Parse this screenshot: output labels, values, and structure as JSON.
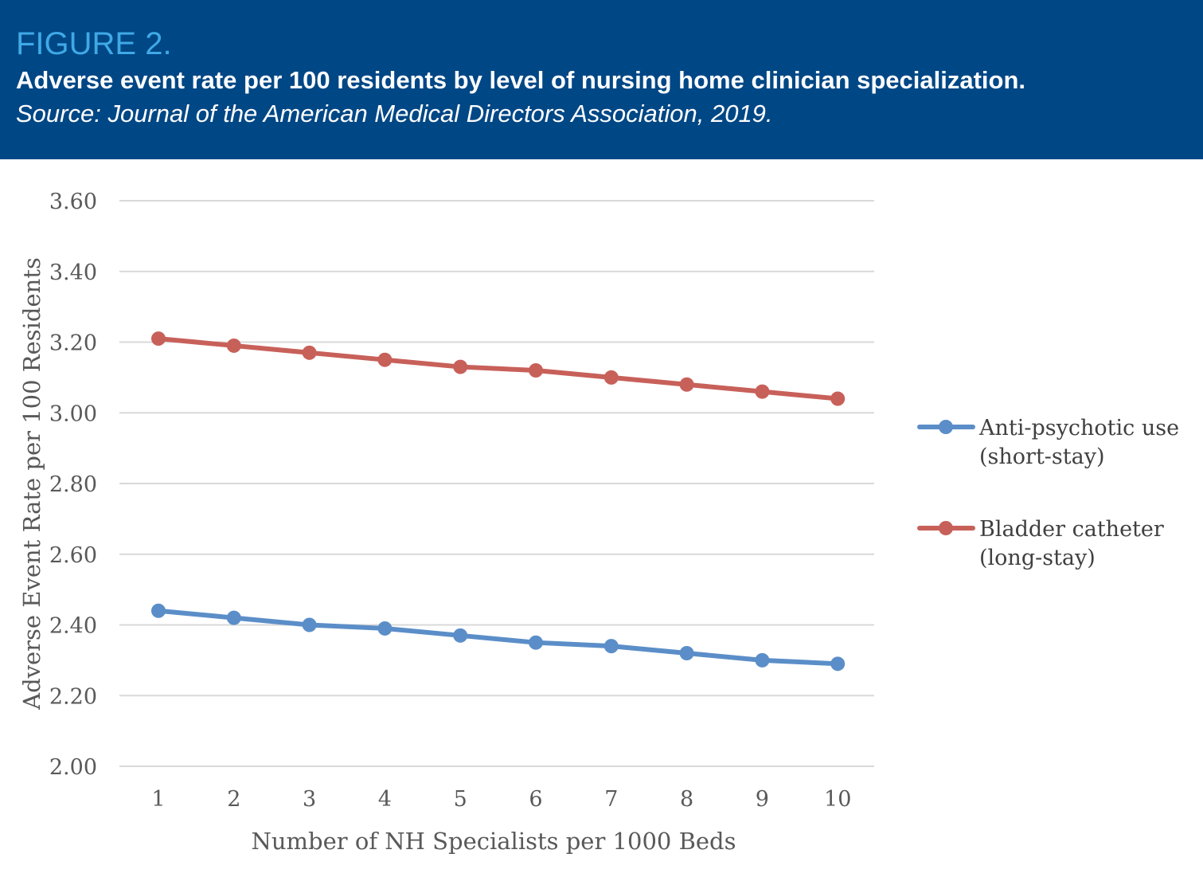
{
  "header": {
    "label": "FIGURE 2.",
    "title": "Adverse event rate per 100 residents by level of nursing home clinician specialization.",
    "source": "Source: Journal of the American Medical Directors Association, 2019."
  },
  "chart_data": {
    "type": "line",
    "xlabel": "Number of NH Specialists per 1000 Beds",
    "ylabel": "Adverse Event Rate per 100 Residents",
    "x": [
      1,
      2,
      3,
      4,
      5,
      6,
      7,
      8,
      9,
      10
    ],
    "ylim": [
      2.0,
      3.6
    ],
    "yticks": [
      "2.00",
      "2.20",
      "2.40",
      "2.60",
      "2.80",
      "3.00",
      "3.20",
      "3.40",
      "3.60"
    ],
    "grid": true,
    "legend": "right",
    "series": [
      {
        "name": "Anti-psychotic use (short-stay)",
        "legend_lines": [
          "Anti-psychotic use",
          "(short-stay)"
        ],
        "color": "#5b8ec8",
        "values": [
          2.44,
          2.42,
          2.4,
          2.39,
          2.37,
          2.35,
          2.34,
          2.32,
          2.3,
          2.29
        ]
      },
      {
        "name": "Bladder catheter (long-stay)",
        "legend_lines": [
          "Bladder catheter",
          "(long-stay)"
        ],
        "color": "#c8605a",
        "values": [
          3.21,
          3.19,
          3.17,
          3.15,
          3.13,
          3.12,
          3.1,
          3.08,
          3.06,
          3.04
        ]
      }
    ]
  }
}
